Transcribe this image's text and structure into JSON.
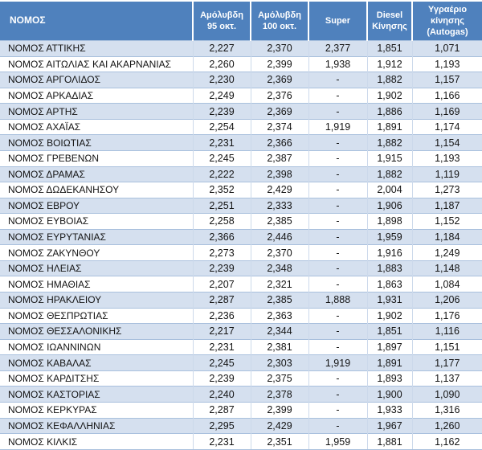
{
  "colors": {
    "header_bg": "#4F81BD",
    "header_text": "#FFFFFF",
    "row_stripe": "#D5E0EF",
    "row_plain": "#FFFFFF",
    "border": "#A9C0DD"
  },
  "table": {
    "columns": [
      "ΝΟΜΟΣ",
      "Αμόλυβδη 95 οκτ.",
      "Αμόλυβδη 100 οκτ.",
      "Super",
      "Diesel Κίνησης",
      "Υγραέριο κίνησης (Autogas)"
    ],
    "rows": [
      {
        "name": "ΝΟΜΟΣ ΑΤΤΙΚΗΣ",
        "values": [
          "2,227",
          "2,370",
          "2,377",
          "1,851",
          "1,071"
        ]
      },
      {
        "name": "ΝΟΜΟΣ ΑΙΤΩΛΙΑΣ ΚΑΙ ΑΚΑΡΝΑΝΙΑΣ",
        "values": [
          "2,260",
          "2,399",
          "1,938",
          "1,912",
          "1,193"
        ]
      },
      {
        "name": "ΝΟΜΟΣ ΑΡΓΟΛΙΔΟΣ",
        "values": [
          "2,230",
          "2,369",
          "-",
          "1,882",
          "1,157"
        ]
      },
      {
        "name": "ΝΟΜΟΣ ΑΡΚΑΔΙΑΣ",
        "values": [
          "2,249",
          "2,376",
          "-",
          "1,902",
          "1,166"
        ]
      },
      {
        "name": "ΝΟΜΟΣ ΑΡΤΗΣ",
        "values": [
          "2,239",
          "2,369",
          "-",
          "1,886",
          "1,169"
        ]
      },
      {
        "name": "ΝΟΜΟΣ ΑΧΑΪΑΣ",
        "values": [
          "2,254",
          "2,374",
          "1,919",
          "1,891",
          "1,174"
        ]
      },
      {
        "name": "ΝΟΜΟΣ ΒΟΙΩΤΙΑΣ",
        "values": [
          "2,231",
          "2,366",
          "-",
          "1,882",
          "1,154"
        ]
      },
      {
        "name": "ΝΟΜΟΣ ΓΡΕΒΕΝΩΝ",
        "values": [
          "2,245",
          "2,387",
          "-",
          "1,915",
          "1,193"
        ]
      },
      {
        "name": "ΝΟΜΟΣ ΔΡΑΜΑΣ",
        "values": [
          "2,222",
          "2,398",
          "-",
          "1,882",
          "1,119"
        ]
      },
      {
        "name": "ΝΟΜΟΣ ΔΩΔΕΚΑΝΗΣΟΥ",
        "values": [
          "2,352",
          "2,429",
          "-",
          "2,004",
          "1,273"
        ]
      },
      {
        "name": "ΝΟΜΟΣ ΕΒΡΟΥ",
        "values": [
          "2,251",
          "2,333",
          "-",
          "1,906",
          "1,187"
        ]
      },
      {
        "name": "ΝΟΜΟΣ ΕΥΒΟΙΑΣ",
        "values": [
          "2,258",
          "2,385",
          "-",
          "1,898",
          "1,152"
        ]
      },
      {
        "name": "ΝΟΜΟΣ ΕΥΡΥΤΑΝΙΑΣ",
        "values": [
          "2,366",
          "2,446",
          "-",
          "1,959",
          "1,184"
        ]
      },
      {
        "name": "ΝΟΜΟΣ ΖΑΚΥΝΘΟΥ",
        "values": [
          "2,273",
          "2,370",
          "-",
          "1,916",
          "1,249"
        ]
      },
      {
        "name": "ΝΟΜΟΣ ΗΛΕΙΑΣ",
        "values": [
          "2,239",
          "2,348",
          "-",
          "1,883",
          "1,148"
        ]
      },
      {
        "name": "ΝΟΜΟΣ ΗΜΑΘΙΑΣ",
        "values": [
          "2,207",
          "2,321",
          "-",
          "1,863",
          "1,084"
        ]
      },
      {
        "name": "ΝΟΜΟΣ ΗΡΑΚΛΕΙΟΥ",
        "values": [
          "2,287",
          "2,385",
          "1,888",
          "1,931",
          "1,206"
        ]
      },
      {
        "name": "ΝΟΜΟΣ ΘΕΣΠΡΩΤΙΑΣ",
        "values": [
          "2,236",
          "2,363",
          "-",
          "1,902",
          "1,176"
        ]
      },
      {
        "name": "ΝΟΜΟΣ ΘΕΣΣΑΛΟΝΙΚΗΣ",
        "values": [
          "2,217",
          "2,344",
          "-",
          "1,851",
          "1,116"
        ]
      },
      {
        "name": "ΝΟΜΟΣ ΙΩΑΝΝΙΝΩΝ",
        "values": [
          "2,231",
          "2,381",
          "-",
          "1,897",
          "1,151"
        ]
      },
      {
        "name": "ΝΟΜΟΣ ΚΑΒΑΛΑΣ",
        "values": [
          "2,245",
          "2,303",
          "1,919",
          "1,891",
          "1,177"
        ]
      },
      {
        "name": "ΝΟΜΟΣ ΚΑΡΔΙΤΣΗΣ",
        "values": [
          "2,239",
          "2,375",
          "-",
          "1,893",
          "1,137"
        ]
      },
      {
        "name": "ΝΟΜΟΣ ΚΑΣΤΟΡΙΑΣ",
        "values": [
          "2,240",
          "2,378",
          "-",
          "1,900",
          "1,090"
        ]
      },
      {
        "name": "ΝΟΜΟΣ ΚΕΡΚΥΡΑΣ",
        "values": [
          "2,287",
          "2,399",
          "-",
          "1,933",
          "1,316"
        ]
      },
      {
        "name": "ΝΟΜΟΣ ΚΕΦΑΛΛΗΝΙΑΣ",
        "values": [
          "2,295",
          "2,429",
          "-",
          "1,967",
          "1,260"
        ]
      },
      {
        "name": "ΝΟΜΟΣ ΚΙΛΚΙΣ",
        "values": [
          "2,231",
          "2,351",
          "1,959",
          "1,881",
          "1,162"
        ]
      }
    ]
  }
}
